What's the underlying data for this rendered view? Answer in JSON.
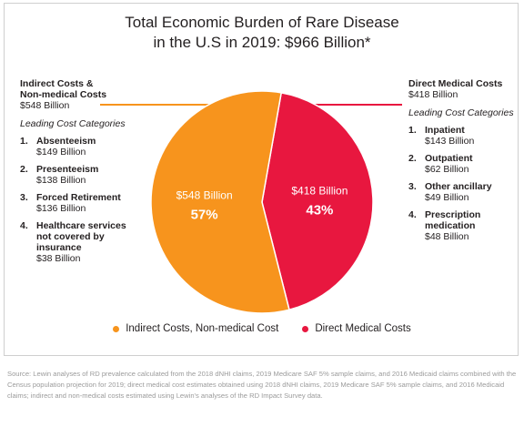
{
  "title_line1": "Total Economic Burden of Rare Disease",
  "title_line2": "in the U.S in 2019: $966 Billion*",
  "indirect": {
    "head_line1": "Indirect Costs &",
    "head_line2": "Non-medical Costs",
    "total": "$548 Billion",
    "lead": "Leading Cost Categories",
    "items": [
      {
        "num": "1.",
        "name_lines": [
          "Absenteeism"
        ],
        "value": "$149 Billion"
      },
      {
        "num": "2.",
        "name_lines": [
          "Presenteeism"
        ],
        "value": "$138 Billion"
      },
      {
        "num": "3.",
        "name_lines": [
          "Forced Retirement"
        ],
        "value": "$136 Billion"
      },
      {
        "num": "4.",
        "name_lines": [
          "Healthcare services",
          "not covered by",
          "insurance"
        ],
        "value": "$38 Billion"
      }
    ]
  },
  "direct": {
    "head": "Direct Medical Costs",
    "total": "$418 Billion",
    "lead": "Leading Cost Categories",
    "items": [
      {
        "num": "1.",
        "name_lines": [
          "Inpatient"
        ],
        "value": "$143 Billion"
      },
      {
        "num": "2.",
        "name_lines": [
          "Outpatient"
        ],
        "value": "$62 Billion"
      },
      {
        "num": "3.",
        "name_lines": [
          "Other ancillary"
        ],
        "value": "$49 Billion"
      },
      {
        "num": "4.",
        "name_lines": [
          "Prescription",
          "medication"
        ],
        "value": "$48 Billion"
      }
    ]
  },
  "source": "Source: Lewin analyses of RD prevalence calculated from the 2018 dNHI claims, 2019 Medicare SAF 5% sample claims, and 2016 Medicaid claims combined with the Census population projection for 2019; direct medical cost estimates obtained using 2018 dNHI claims, 2019 Medicare SAF 5% sample claims, and 2016 Medicaid claims; indirect and non-medical costs estimated using Lewin's analyses of the RD Impact Survey data.",
  "chart_data": {
    "type": "pie",
    "title": "Total Economic Burden of Rare Disease in the U.S in 2019: $966 Billion*",
    "slices": [
      {
        "label": "Indirect Costs, Non-medical Cost",
        "value": 548,
        "value_label": "$548 Billion",
        "percent_label": "57%",
        "color": "#f7941d"
      },
      {
        "label": "Direct Medical Costs",
        "value": 418,
        "value_label": "$418 Billion",
        "percent_label": "43%",
        "color": "#e8173f"
      }
    ],
    "legend_position": "bottom"
  }
}
